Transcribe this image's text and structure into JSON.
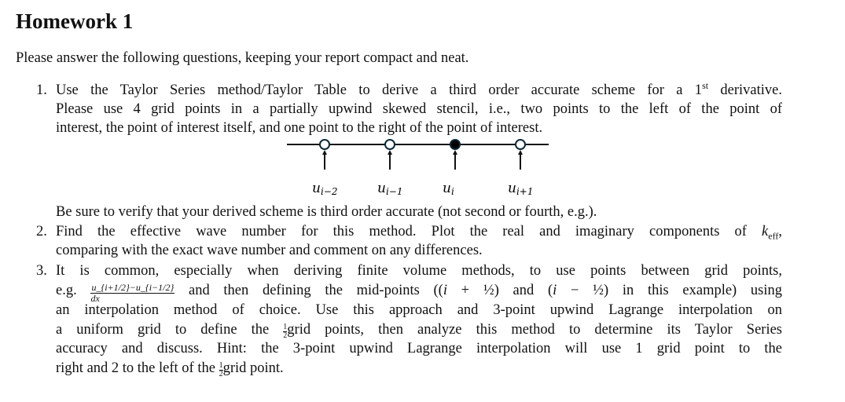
{
  "title": "Homework 1",
  "intro": "Please answer the following questions, keeping your report compact and neat.",
  "q1": {
    "number": "1.",
    "l1a": "Use the Taylor Series method/Taylor Table to derive a third order accurate scheme for a 1",
    "l1sup": "st",
    "l1b": " derivative.",
    "l2": "Please use 4 grid points in a partially upwind skewed stencil, i.e., two points to the left of the point of",
    "l3": "interest, the point of interest itself, and one point to the right of the point of interest.",
    "diagram_labels": [
      "u_{i−2}",
      "u_{i−1}",
      "u_i",
      "u_{i+1}"
    ],
    "diagram_label_base": [
      "u",
      "u",
      "u",
      "u"
    ],
    "diagram_label_sub": [
      "i−2",
      "i−1",
      "i",
      "i+1"
    ],
    "l4": "Be sure to verify that your derived scheme is third order accurate (not second or fourth, e.g.)."
  },
  "q2": {
    "number": "2.",
    "l1a": "Find the effective wave number for this method. Plot the real and imaginary components of ",
    "k": "k",
    "ksub": "eff",
    "l1b": ",",
    "l2": "comparing with the exact wave number and comment on any differences."
  },
  "q3": {
    "number": "3.",
    "l1": "It is common, especially when deriving finite volume methods, to use points between grid points,",
    "l2a": "e.g.",
    "frac_num": "u_{i+1/2}−u_{i−1/2}",
    "frac_den": "dx",
    "l2b": "and then defining the mid-points ((",
    "l2i1": "i",
    "l2c": " + ½) and (",
    "l2i2": "i",
    "l2d": " − ½) in this example) using",
    "l3": "an interpolation method of choice. Use this approach and 3-point upwind Lagrange interpolation on",
    "l4a": "a uniform grid to define the ",
    "half_n": "1",
    "half_d": "2",
    "l4b": "grid points, then analyze this method to determine its Taylor Series",
    "l5": "accuracy and discuss. Hint: the 3-point upwind Lagrange interpolation will use 1 grid point to the",
    "l6a": "right and 2 to the left of the ",
    "l6b": "grid point."
  }
}
